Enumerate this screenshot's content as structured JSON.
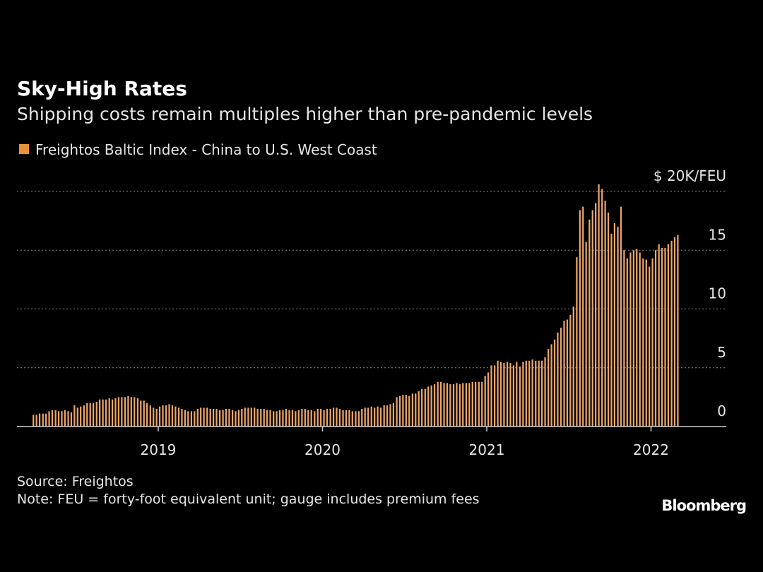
{
  "chart_data": {
    "type": "bar",
    "title": "Sky-High Rates",
    "subtitle": "Shipping costs remain multiples higher than pre-pandemic levels",
    "source": "Source: Freightos",
    "note": "Note: FEU = forty-foot equivalent unit; gauge includes premium fees",
    "brand": "Bloomberg",
    "xlim": [
      2018.14,
      2022.458
    ],
    "xticks": [
      2019,
      2020,
      2021,
      2022
    ],
    "ylim": [
      0,
      20
    ],
    "yticks": [
      0,
      5,
      10,
      15,
      {
        "value": 20,
        "label": "$ 20K/FEU"
      }
    ],
    "grid": true,
    "x": [
      2018.24,
      2018.259,
      2018.278,
      2018.298,
      2018.317,
      2018.336,
      2018.355,
      2018.375,
      2018.394,
      2018.413,
      2018.432,
      2018.452,
      2018.471,
      2018.49,
      2018.509,
      2018.528,
      2018.548,
      2018.567,
      2018.586,
      2018.605,
      2018.625,
      2018.644,
      2018.663,
      2018.682,
      2018.702,
      2018.721,
      2018.74,
      2018.759,
      2018.778,
      2018.798,
      2018.817,
      2018.836,
      2018.855,
      2018.875,
      2018.894,
      2018.913,
      2018.932,
      2018.952,
      2018.971,
      2018.99,
      2019.009,
      2019.028,
      2019.048,
      2019.067,
      2019.086,
      2019.105,
      2019.125,
      2019.144,
      2019.163,
      2019.182,
      2019.202,
      2019.221,
      2019.24,
      2019.259,
      2019.278,
      2019.298,
      2019.317,
      2019.336,
      2019.355,
      2019.375,
      2019.394,
      2019.413,
      2019.432,
      2019.452,
      2019.471,
      2019.49,
      2019.509,
      2019.528,
      2019.548,
      2019.567,
      2019.586,
      2019.605,
      2019.625,
      2019.644,
      2019.663,
      2019.682,
      2019.702,
      2019.721,
      2019.74,
      2019.759,
      2019.778,
      2019.798,
      2019.817,
      2019.836,
      2019.855,
      2019.875,
      2019.894,
      2019.913,
      2019.932,
      2019.952,
      2019.971,
      2019.99,
      2020.009,
      2020.028,
      2020.048,
      2020.067,
      2020.086,
      2020.105,
      2020.125,
      2020.144,
      2020.163,
      2020.182,
      2020.202,
      2020.221,
      2020.24,
      2020.259,
      2020.278,
      2020.298,
      2020.317,
      2020.336,
      2020.355,
      2020.375,
      2020.394,
      2020.413,
      2020.432,
      2020.452,
      2020.471,
      2020.49,
      2020.509,
      2020.528,
      2020.548,
      2020.567,
      2020.586,
      2020.605,
      2020.625,
      2020.644,
      2020.663,
      2020.682,
      2020.702,
      2020.721,
      2020.74,
      2020.759,
      2020.778,
      2020.798,
      2020.817,
      2020.836,
      2020.855,
      2020.875,
      2020.894,
      2020.913,
      2020.932,
      2020.952,
      2020.971,
      2020.99,
      2021.009,
      2021.028,
      2021.048,
      2021.067,
      2021.086,
      2021.105,
      2021.125,
      2021.144,
      2021.163,
      2021.182,
      2021.202,
      2021.221,
      2021.24,
      2021.259,
      2021.278,
      2021.298,
      2021.317,
      2021.336,
      2021.355,
      2021.375,
      2021.394,
      2021.413,
      2021.432,
      2021.452,
      2021.471,
      2021.49,
      2021.509,
      2021.528,
      2021.548,
      2021.567,
      2021.586,
      2021.605,
      2021.625,
      2021.644,
      2021.663,
      2021.682,
      2021.702,
      2021.721,
      2021.74,
      2021.759,
      2021.778,
      2021.798,
      2021.817,
      2021.836,
      2021.855,
      2021.875,
      2021.894,
      2021.913,
      2021.932,
      2021.952,
      2021.971,
      2021.99,
      2022.009,
      2022.028,
      2022.048,
      2022.067,
      2022.086,
      2022.105,
      2022.125,
      2022.144,
      2022.163
    ],
    "series": [
      {
        "name": "Freightos Baltic Index - China to U.S. West Coast",
        "color": "#eda66a",
        "legend_color": "#e8923a",
        "values": [
          1.0,
          1.0,
          1.1,
          1.1,
          1.1,
          1.3,
          1.4,
          1.4,
          1.3,
          1.3,
          1.4,
          1.3,
          1.2,
          1.8,
          1.6,
          1.7,
          1.8,
          2.0,
          2.0,
          2.0,
          2.1,
          2.3,
          2.3,
          2.3,
          2.4,
          2.3,
          2.4,
          2.5,
          2.5,
          2.5,
          2.6,
          2.5,
          2.5,
          2.4,
          2.2,
          2.2,
          2.0,
          1.8,
          1.6,
          1.5,
          1.7,
          1.8,
          1.8,
          1.9,
          1.8,
          1.7,
          1.6,
          1.5,
          1.4,
          1.3,
          1.3,
          1.3,
          1.5,
          1.6,
          1.6,
          1.6,
          1.5,
          1.5,
          1.5,
          1.4,
          1.4,
          1.5,
          1.5,
          1.4,
          1.3,
          1.4,
          1.5,
          1.6,
          1.6,
          1.6,
          1.6,
          1.5,
          1.5,
          1.5,
          1.4,
          1.4,
          1.3,
          1.3,
          1.4,
          1.4,
          1.5,
          1.4,
          1.4,
          1.3,
          1.4,
          1.5,
          1.5,
          1.4,
          1.4,
          1.3,
          1.5,
          1.5,
          1.4,
          1.5,
          1.5,
          1.6,
          1.6,
          1.5,
          1.4,
          1.4,
          1.4,
          1.3,
          1.3,
          1.3,
          1.5,
          1.6,
          1.6,
          1.7,
          1.6,
          1.7,
          1.6,
          1.8,
          1.8,
          1.9,
          2.0,
          2.5,
          2.6,
          2.7,
          2.7,
          2.6,
          2.8,
          2.8,
          3.0,
          3.2,
          3.2,
          3.4,
          3.5,
          3.6,
          3.8,
          3.8,
          3.7,
          3.7,
          3.6,
          3.6,
          3.7,
          3.6,
          3.7,
          3.7,
          3.7,
          3.8,
          3.8,
          3.8,
          3.8,
          4.3,
          4.6,
          5.2,
          5.2,
          5.6,
          5.5,
          5.4,
          5.5,
          5.4,
          5.2,
          5.5,
          5.1,
          5.5,
          5.6,
          5.6,
          5.7,
          5.6,
          5.6,
          5.6,
          5.9,
          6.6,
          7.0,
          7.4,
          8.0,
          8.4,
          9.0,
          9.1,
          9.5,
          10.2,
          14.4,
          18.4,
          18.7,
          15.7,
          17.6,
          18.4,
          19.0,
          20.6,
          20.2,
          19.2,
          18.2,
          16.4,
          17.3,
          17.0,
          18.7,
          15.0,
          14.3,
          14.8,
          15.0,
          15.1,
          14.8,
          14.3,
          14.2,
          13.6,
          14.3,
          15.0,
          15.5,
          15.2,
          15.2,
          15.5,
          15.8,
          16.1,
          16.3
        ]
      }
    ]
  }
}
